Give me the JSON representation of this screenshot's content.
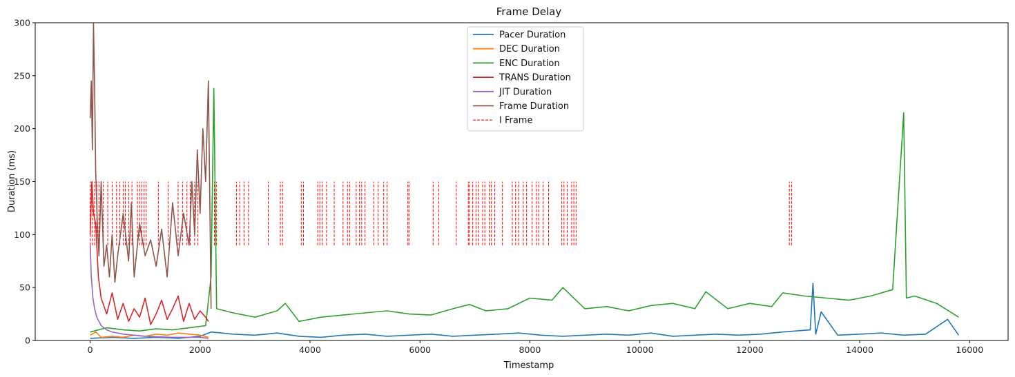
{
  "chart_data": {
    "type": "line",
    "title": "Frame Delay",
    "xlabel": "Timestamp",
    "ylabel": "Duration (ms)",
    "xlim": [
      -1000,
      16700
    ],
    "ylim": [
      0,
      300
    ],
    "xticks": [
      0,
      2000,
      4000,
      6000,
      8000,
      10000,
      12000,
      14000,
      16000
    ],
    "yticks": [
      0,
      50,
      100,
      150,
      200,
      250,
      300
    ],
    "grid": false,
    "legend_position": "top-center",
    "series": [
      {
        "name": "Pacer Duration",
        "color": "#1f77b4",
        "x": [
          0,
          400,
          800,
          1200,
          1600,
          2000,
          2200,
          2600,
          3000,
          3400,
          3800,
          4200,
          4600,
          5000,
          5400,
          5800,
          6200,
          6600,
          7000,
          7400,
          7800,
          8200,
          8600,
          9000,
          9400,
          9800,
          10200,
          10600,
          11000,
          11400,
          11800,
          12200,
          12600,
          13100,
          13150,
          13200,
          13300,
          13600,
          14000,
          14400,
          14800,
          15200,
          15600,
          15800
        ],
        "y": [
          2,
          3,
          2,
          3,
          2,
          4,
          8,
          6,
          5,
          7,
          4,
          3,
          5,
          6,
          4,
          5,
          6,
          4,
          5,
          6,
          7,
          5,
          4,
          5,
          6,
          5,
          7,
          4,
          5,
          6,
          5,
          6,
          8,
          10,
          54,
          6,
          27,
          5,
          6,
          7,
          5,
          6,
          20,
          5
        ]
      },
      {
        "name": "DEC Duration",
        "color": "#ff7f0e",
        "x": [
          0,
          100,
          200,
          400,
          600,
          800,
          1000,
          1200,
          1400,
          1600,
          1800,
          2000,
          2150
        ],
        "y": [
          5,
          8,
          3,
          4,
          3,
          5,
          4,
          6,
          5,
          7,
          6,
          5,
          3
        ]
      },
      {
        "name": "ENC Duration",
        "color": "#2ca02c",
        "x": [
          0,
          300,
          600,
          900,
          1200,
          1500,
          1800,
          2100,
          2200,
          2250,
          2300,
          2600,
          3000,
          3400,
          3550,
          3800,
          4200,
          4600,
          5000,
          5400,
          5800,
          6200,
          6600,
          6900,
          7200,
          7600,
          8000,
          8400,
          8600,
          9000,
          9400,
          9800,
          10200,
          10600,
          11000,
          11200,
          11600,
          12000,
          12400,
          12600,
          13000,
          13400,
          13800,
          14200,
          14600,
          14800,
          14850,
          15000,
          15400,
          15800
        ],
        "y": [
          8,
          12,
          10,
          9,
          11,
          10,
          12,
          14,
          60,
          238,
          30,
          26,
          22,
          28,
          35,
          18,
          22,
          24,
          26,
          28,
          25,
          24,
          30,
          34,
          28,
          30,
          40,
          38,
          50,
          30,
          32,
          28,
          33,
          35,
          30,
          46,
          30,
          35,
          32,
          45,
          42,
          40,
          38,
          42,
          48,
          215,
          40,
          42,
          35,
          22
        ]
      },
      {
        "name": "TRANS Duration",
        "color": "#d62728",
        "x": [
          0,
          30,
          60,
          100,
          150,
          200,
          300,
          400,
          500,
          600,
          700,
          800,
          900,
          1000,
          1100,
          1200,
          1300,
          1400,
          1500,
          1600,
          1700,
          1800,
          1900,
          2000,
          2100,
          2150
        ],
        "y": [
          100,
          150,
          120,
          110,
          60,
          40,
          25,
          45,
          20,
          35,
          18,
          30,
          22,
          40,
          15,
          25,
          38,
          20,
          30,
          42,
          18,
          35,
          20,
          28,
          22,
          18
        ]
      },
      {
        "name": "JIT Duration",
        "color": "#9467bd",
        "x": [
          0,
          20,
          50,
          80,
          120,
          160,
          200,
          300,
          400,
          600,
          800,
          1000,
          1500,
          2000,
          2150
        ],
        "y": [
          90,
          60,
          40,
          30,
          22,
          18,
          14,
          10,
          8,
          6,
          5,
          4,
          3,
          3,
          2
        ]
      },
      {
        "name": "Frame Duration",
        "color": "#8c564b",
        "x": [
          0,
          20,
          40,
          60,
          80,
          100,
          130,
          160,
          200,
          250,
          300,
          350,
          400,
          450,
          500,
          600,
          700,
          750,
          800,
          900,
          1000,
          1100,
          1200,
          1300,
          1400,
          1500,
          1600,
          1700,
          1800,
          1850,
          1900,
          1950,
          2000,
          2050,
          2100,
          2150,
          2200
        ],
        "y": [
          210,
          245,
          180,
          300,
          240,
          160,
          110,
          80,
          150,
          70,
          90,
          60,
          100,
          55,
          80,
          120,
          75,
          130,
          60,
          110,
          80,
          95,
          70,
          105,
          60,
          130,
          80,
          120,
          90,
          150,
          100,
          180,
          120,
          200,
          150,
          245,
          30
        ]
      }
    ],
    "i_frame_markers": {
      "name": "I Frame",
      "color": "#ff0000",
      "line_style": "dashed",
      "y_range": [
        90,
        150
      ],
      "x": [
        0,
        40,
        80,
        120,
        160,
        240,
        320,
        400,
        480,
        540,
        600,
        640,
        700,
        760,
        860,
        900,
        940,
        980,
        1020,
        1240,
        1420,
        1600,
        1680,
        1760,
        1820,
        1900,
        1960,
        2260,
        2300,
        2660,
        2720,
        2800,
        2880,
        3240,
        3460,
        3500,
        3840,
        3880,
        4140,
        4180,
        4220,
        4300,
        4440,
        4600,
        4680,
        4720,
        4840,
        4900,
        4940,
        5000,
        5160,
        5240,
        5340,
        5400,
        5780,
        5800,
        6240,
        6340,
        6660,
        6880,
        6900,
        6960,
        7020,
        7060,
        7140,
        7180,
        7260,
        7300,
        7360,
        7500,
        7680,
        7740,
        7800,
        7880,
        7940,
        8040,
        8120,
        8160,
        8240,
        8340,
        8580,
        8620,
        8680,
        8760,
        8800,
        8840,
        12720,
        12760
      ]
    }
  }
}
